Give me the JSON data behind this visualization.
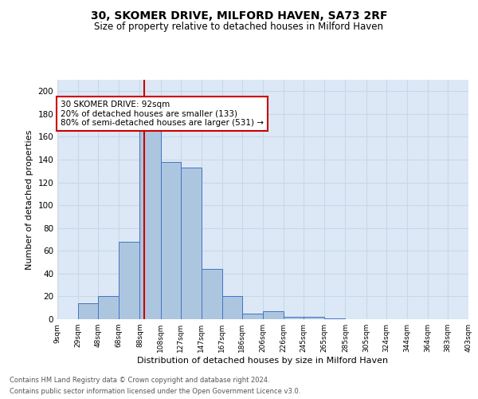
{
  "title": "30, SKOMER DRIVE, MILFORD HAVEN, SA73 2RF",
  "subtitle": "Size of property relative to detached houses in Milford Haven",
  "xlabel": "Distribution of detached houses by size in Milford Haven",
  "ylabel": "Number of detached properties",
  "footnote1": "Contains HM Land Registry data © Crown copyright and database right 2024.",
  "footnote2": "Contains public sector information licensed under the Open Government Licence v3.0.",
  "annotation_line1": "30 SKOMER DRIVE: 92sqm",
  "annotation_line2": "20% of detached houses are smaller (133)",
  "annotation_line3": "80% of semi-detached houses are larger (531) →",
  "subject_value": 92,
  "bin_edges": [
    9,
    29,
    48,
    68,
    88,
    108,
    127,
    147,
    167,
    186,
    206,
    226,
    245,
    265,
    285,
    305,
    324,
    344,
    364,
    383,
    403
  ],
  "bin_labels": [
    "9sqm",
    "29sqm",
    "48sqm",
    "68sqm",
    "88sqm",
    "108sqm",
    "127sqm",
    "147sqm",
    "167sqm",
    "186sqm",
    "206sqm",
    "226sqm",
    "245sqm",
    "265sqm",
    "285sqm",
    "305sqm",
    "324sqm",
    "344sqm",
    "364sqm",
    "383sqm",
    "403sqm"
  ],
  "counts": [
    0,
    14,
    20,
    68,
    170,
    138,
    133,
    44,
    20,
    5,
    7,
    2,
    2,
    1,
    0,
    0,
    0,
    0,
    0,
    0
  ],
  "bar_color": "#adc6e0",
  "bar_edge_color": "#4472c4",
  "grid_color": "#c8d8e8",
  "bg_color": "#dce8f5",
  "red_line_color": "#cc0000",
  "annotation_box_edge": "#cc0000",
  "ylim": [
    0,
    210
  ],
  "yticks": [
    0,
    20,
    40,
    60,
    80,
    100,
    120,
    140,
    160,
    180,
    200
  ],
  "title_fontsize": 10,
  "subtitle_fontsize": 8.5,
  "annotation_fontsize": 7.5,
  "xlabel_fontsize": 8,
  "ylabel_fontsize": 8
}
